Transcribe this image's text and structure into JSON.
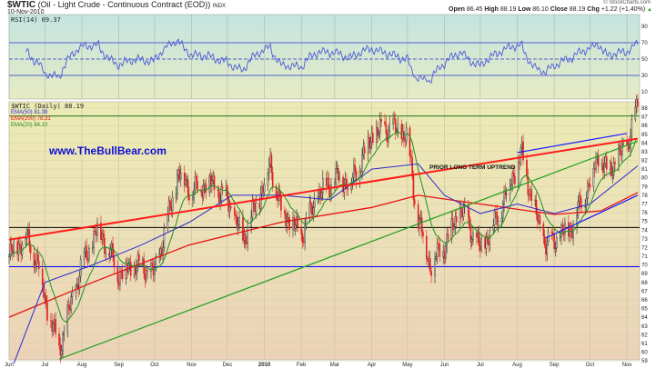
{
  "header": {
    "symbol": "$WTIC",
    "description": "(Oil - Light Crude - Continuous Contract (EOD))",
    "exchange": "INDX",
    "date": "10-Nov-2010",
    "copyright": "© StockCharts.com",
    "open_label": "Open",
    "open": "86.45",
    "high_label": "High",
    "high": "88.19",
    "low_label": "Low",
    "low": "86.10",
    "close_label": "Close",
    "close": "88.19",
    "chg_label": "Chg",
    "chg": "+1.22 (+1.40%)",
    "chg_icon": "up-triangle-icon"
  },
  "colors": {
    "price": "#000000",
    "ema50": "#2a2ad0",
    "ema200": "#e81010",
    "ema20": "#209020",
    "rsi": "#4a5ad8",
    "trend_red": "#ff1a1a",
    "trend_green": "#20a020",
    "trend_blue": "#1a1aff",
    "hline_green": "#208020",
    "hline_black": "#000000",
    "hline_blue": "#0000ff",
    "watermark": "#1010d0"
  },
  "chart_data": [
    {
      "type": "line",
      "panel": "rsi",
      "legend": "RSI(14) 69.37",
      "value": 69.37,
      "ylim": [
        0,
        100
      ],
      "yticks": [
        90,
        70,
        50,
        30,
        10
      ],
      "reference_lines": [
        70,
        50,
        30
      ]
    },
    {
      "type": "candlestick",
      "panel": "price",
      "legend": "$WTIC (Daily) 88.19",
      "ylim": [
        58.5,
        88.5
      ],
      "yticks": [
        88,
        87,
        86,
        85,
        84,
        83,
        82,
        81,
        80,
        79,
        78,
        77,
        76,
        75,
        74,
        73,
        72,
        71,
        70,
        69,
        68,
        67,
        66,
        65,
        64,
        63,
        62,
        61,
        60,
        59
      ],
      "xticks": [
        "Jun",
        "Jul",
        "Aug",
        "Sep",
        "Oct",
        "Nov",
        "Dec",
        "2010",
        "Feb",
        "Mar",
        "Apr",
        "May",
        "Jun",
        "Jul",
        "Aug",
        "Sep",
        "Oct",
        "Nov"
      ],
      "xtick_dates": [
        "2009-06-01",
        "2009-07-01",
        "2009-08-01",
        "2009-09-01",
        "2009-10-01",
        "2009-11-01",
        "2009-12-01",
        "2010-01-01",
        "2010-02-01",
        "2010-03-01",
        "2010-04-01",
        "2010-05-01",
        "2010-06-01",
        "2010-07-01",
        "2010-08-01",
        "2010-09-01",
        "2010-10-01",
        "2010-11-01"
      ],
      "close": [
        [
          "2009-06-01",
          71.0
        ],
        [
          "2009-06-15",
          73.3
        ],
        [
          "2009-06-26",
          70.0
        ],
        [
          "2009-07-01",
          66.0
        ],
        [
          "2009-07-13",
          60.3
        ],
        [
          "2009-07-20",
          64.0
        ],
        [
          "2009-08-01",
          70.0
        ],
        [
          "2009-08-15",
          74.3
        ],
        [
          "2009-09-01",
          69.0
        ],
        [
          "2009-09-15",
          70.0
        ],
        [
          "2009-10-01",
          69.0
        ],
        [
          "2009-10-14",
          76.4
        ],
        [
          "2009-10-21",
          80.6
        ],
        [
          "2009-11-01",
          78.5
        ],
        [
          "2009-11-15",
          79.5
        ],
        [
          "2009-12-01",
          77.5
        ],
        [
          "2009-12-14",
          72.8
        ],
        [
          "2010-01-01",
          79.5
        ],
        [
          "2010-01-06",
          81.6
        ],
        [
          "2010-01-15",
          76.4
        ],
        [
          "2010-02-01",
          73.3
        ],
        [
          "2010-02-15",
          78.0
        ],
        [
          "2010-03-01",
          80.0
        ],
        [
          "2010-03-15",
          79.5
        ],
        [
          "2010-04-01",
          84.8
        ],
        [
          "2010-04-15",
          85.8
        ],
        [
          "2010-05-01",
          84.8
        ],
        [
          "2010-05-08",
          76.4
        ],
        [
          "2010-05-20",
          70.0
        ],
        [
          "2010-06-01",
          72.3
        ],
        [
          "2010-06-15",
          76.4
        ],
        [
          "2010-07-01",
          71.7
        ],
        [
          "2010-07-15",
          75.4
        ],
        [
          "2010-08-01",
          81.6
        ],
        [
          "2010-08-05",
          82.7
        ],
        [
          "2010-08-15",
          76.4
        ],
        [
          "2010-08-25",
          72.3
        ],
        [
          "2010-09-01",
          72.8
        ],
        [
          "2010-09-15",
          74.3
        ],
        [
          "2010-10-01",
          79.5
        ],
        [
          "2010-10-08",
          82.7
        ],
        [
          "2010-10-15",
          80.6
        ],
        [
          "2010-11-01",
          83.7
        ],
        [
          "2010-11-10",
          88.19
        ]
      ],
      "overlays": [
        {
          "name": "EMA(50) 81.38",
          "color_key": "ema50",
          "points": [
            [
              "2009-06-05",
              58.7
            ],
            [
              "2009-07-01",
              68.0
            ],
            [
              "2009-08-10",
              70.0
            ],
            [
              "2009-09-20",
              72.3
            ],
            [
              "2009-10-30",
              74.9
            ],
            [
              "2009-12-05",
              78.0
            ],
            [
              "2010-01-15",
              78.0
            ],
            [
              "2010-02-25",
              77.5
            ],
            [
              "2010-04-01",
              81.0
            ],
            [
              "2010-05-10",
              81.6
            ],
            [
              "2010-06-01",
              78.0
            ],
            [
              "2010-07-01",
              75.9
            ],
            [
              "2010-08-01",
              77.0
            ],
            [
              "2010-09-01",
              75.9
            ],
            [
              "2010-10-01",
              77.0
            ],
            [
              "2010-11-10",
              81.38
            ]
          ]
        },
        {
          "name": "EMA(200) 78.31",
          "color_key": "ema200",
          "points": [
            [
              "2009-06-01",
              64.0
            ],
            [
              "2009-08-10",
              68.0
            ],
            [
              "2009-10-30",
              72.3
            ],
            [
              "2010-01-15",
              74.9
            ],
            [
              "2010-04-01",
              76.6
            ],
            [
              "2010-05-10",
              78.0
            ],
            [
              "2010-06-15",
              77.3
            ],
            [
              "2010-09-01",
              75.8
            ],
            [
              "2010-10-10",
              76.2
            ],
            [
              "2010-11-10",
              78.31
            ]
          ]
        },
        {
          "name": "EMA(20) 84.10",
          "color_key": "ema20",
          "value": 84.1
        }
      ],
      "trendlines": [
        {
          "color_key": "trend_red",
          "from": [
            "2009-06-01",
            72.9
          ],
          "to": [
            "2010-11-10",
            84.5
          ]
        },
        {
          "color_key": "trend_green",
          "from": [
            "2009-07-13",
            59.2
          ],
          "to": [
            "2010-11-10",
            84.2
          ]
        },
        {
          "color_key": "trend_blue",
          "from": [
            "2010-08-01",
            82.9
          ],
          "to": [
            "2010-11-01",
            85.1
          ]
        },
        {
          "color_key": "trend_blue",
          "from": [
            "2010-08-25",
            73.1
          ],
          "to": [
            "2010-11-10",
            78.0
          ]
        }
      ],
      "horizontal_lines": [
        {
          "price": 87.1,
          "color_key": "hline_green"
        },
        {
          "price": 74.3,
          "color_key": "hline_black"
        },
        {
          "price": 69.8,
          "color_key": "hline_blue"
        }
      ],
      "annotations": [
        "PRIOR LONG TERM UPTREND"
      ]
    }
  ],
  "watermark": "www.TheBullBear.com"
}
